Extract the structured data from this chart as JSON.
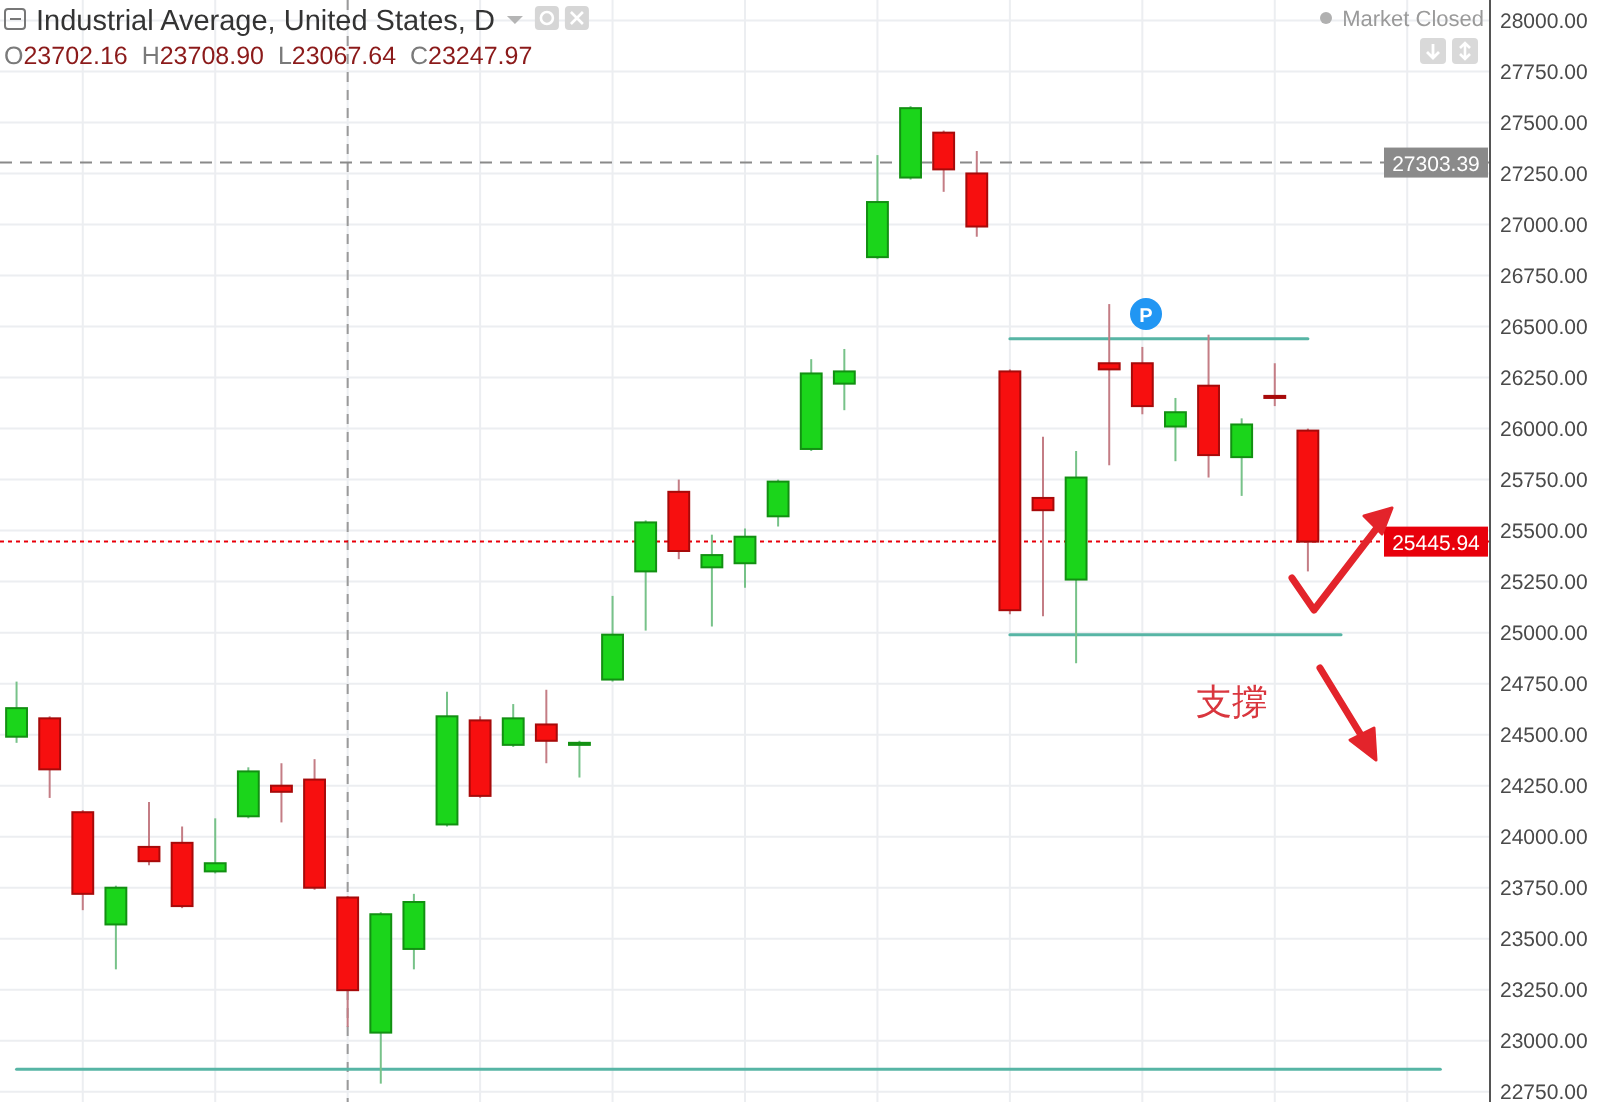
{
  "chart_data": {
    "type": "candlestick",
    "title": "Industrial Average, United States, D",
    "annotations": [
      "O23702.16 H23708.90 L23067.64 C23247.97",
      "Market Closed",
      "P",
      "支撐"
    ],
    "categories": [
      null,
      null,
      null,
      null,
      null,
      null,
      null,
      null,
      null,
      null,
      null,
      null,
      null,
      null,
      null,
      null,
      null,
      null,
      null,
      null,
      null,
      null,
      null,
      null,
      null,
      null,
      null,
      null,
      null,
      null,
      null,
      null,
      null,
      null,
      null,
      null,
      null,
      null,
      null,
      null,
      null,
      null,
      null,
      null,
      null
    ],
    "ohlc": [
      [
        24490,
        24760,
        24460,
        24630
      ],
      [
        24580,
        24590,
        24190,
        24330
      ],
      [
        24120,
        24130,
        23640,
        23720
      ],
      [
        23570,
        23760,
        23350,
        23750
      ],
      [
        23950,
        24170,
        23860,
        23880
      ],
      [
        23970,
        24050,
        23650,
        23660
      ],
      [
        23830,
        24090,
        23820,
        23870
      ],
      [
        24100,
        24340,
        24090,
        24320
      ],
      [
        24250,
        24360,
        24070,
        24220
      ],
      [
        24280,
        24380,
        23740,
        23750
      ],
      [
        23702.16,
        23708.9,
        23067.64,
        23247.97
      ],
      [
        23040,
        23630,
        22790,
        23620
      ],
      [
        23450,
        23720,
        23350,
        23680
      ],
      [
        24060,
        24710,
        24050,
        24590
      ],
      [
        24570,
        24590,
        24190,
        24200
      ],
      [
        24450,
        24650,
        24440,
        24580
      ],
      [
        24550,
        24720,
        24360,
        24470
      ],
      [
        24450,
        24470,
        24290,
        24460
      ],
      [
        24770,
        25180,
        24760,
        24990
      ],
      [
        25300,
        25550,
        25010,
        25540
      ],
      [
        25690,
        25750,
        25360,
        25400
      ],
      [
        25320,
        25480,
        25030,
        25380
      ],
      [
        25340,
        25510,
        25220,
        25470
      ],
      [
        25570,
        25750,
        25520,
        25740
      ],
      [
        25900,
        26340,
        25890,
        26270
      ],
      [
        26220,
        26390,
        26090,
        26280
      ],
      [
        26840,
        27340,
        26830,
        27110
      ],
      [
        27230,
        27580,
        27220,
        27570
      ],
      [
        27450,
        27460,
        27160,
        27270
      ],
      [
        27250,
        27360,
        26940,
        26990
      ],
      [
        26280,
        26290,
        25090,
        25110
      ],
      [
        25660,
        25960,
        25080,
        25600
      ],
      [
        25260,
        25890,
        24850,
        25760
      ],
      [
        26320,
        26610,
        25820,
        26290
      ],
      [
        26320,
        26400,
        26070,
        26110
      ],
      [
        26010,
        26150,
        25840,
        26080
      ],
      [
        26210,
        26460,
        25760,
        25870
      ],
      [
        25860,
        26050,
        25670,
        26020
      ],
      [
        26160,
        26320,
        26110,
        26150
      ],
      [
        25990,
        26000,
        25300,
        25445.94
      ],
      null,
      null,
      null,
      null,
      null
    ],
    "colors": [
      "#1bd51b",
      "#f70f0f",
      "#f70f0f",
      "#1bd51b",
      "#f70f0f",
      "#f70f0f",
      "#1bd51b",
      "#1bd51b",
      "#f70f0f",
      "#f70f0f",
      "#f70f0f",
      "#1bd51b",
      "#1bd51b",
      "#1bd51b",
      "#f70f0f",
      "#1bd51b",
      "#f70f0f",
      "#1bd51b",
      "#1bd51b",
      "#1bd51b",
      "#f70f0f",
      "#1bd51b",
      "#1bd51b",
      "#1bd51b",
      "#1bd51b",
      "#1bd51b",
      "#1bd51b",
      "#1bd51b",
      "#f70f0f",
      "#f70f0f",
      "#f70f0f",
      "#f70f0f",
      "#1bd51b",
      "#f70f0f",
      "#f70f0f",
      "#1bd51b",
      "#f70f0f",
      "#1bd51b",
      "#f70f0f",
      "#f70f0f",
      null,
      null,
      null,
      null,
      null
    ],
    "series": [
      {
        "type": "line",
        "color": "#57b5a5",
        "values": [
          null,
          null,
          null,
          null,
          null,
          null,
          null,
          null,
          null,
          null,
          null,
          null,
          null,
          null,
          null,
          null,
          null,
          null,
          null,
          null,
          null,
          null,
          null,
          null,
          null,
          null,
          null,
          null,
          null,
          null,
          26440,
          26440,
          26440,
          26440,
          26440,
          26440,
          26440,
          26440,
          26440,
          26440,
          null,
          null,
          null,
          null,
          null
        ]
      },
      {
        "type": "line",
        "color": "#57b5a5",
        "values": [
          null,
          null,
          null,
          null,
          null,
          null,
          null,
          null,
          null,
          null,
          null,
          null,
          null,
          null,
          null,
          null,
          null,
          null,
          null,
          null,
          null,
          null,
          null,
          null,
          null,
          null,
          null,
          null,
          null,
          null,
          24990,
          24990,
          24990,
          24990,
          24990,
          24990,
          24990,
          24990,
          24990,
          24990,
          24990,
          null,
          null,
          null,
          null
        ]
      },
      {
        "type": "line",
        "color": "#57b5a5",
        "values": [
          22860,
          22860,
          22860,
          22860,
          22860,
          22860,
          22860,
          22860,
          22860,
          22860,
          22860,
          22860,
          22860,
          22860,
          22860,
          22860,
          22860,
          22860,
          22860,
          22860,
          22860,
          22860,
          22860,
          22860,
          22860,
          22860,
          22860,
          22860,
          22860,
          22860,
          22860,
          22860,
          22860,
          22860,
          22860,
          22860,
          22860,
          22860,
          22860,
          22860,
          22860,
          22860,
          22860,
          22860,
          null
        ]
      }
    ],
    "ylim": [
      22700,
      28100
    ],
    "yticks": [
      {
        "value": 22750,
        "label": "22750.00"
      },
      {
        "value": 23000,
        "label": "23000.00"
      },
      {
        "value": 23250,
        "label": "23250.00"
      },
      {
        "value": 23500,
        "label": "23500.00"
      },
      {
        "value": 23750,
        "label": "23750.00"
      },
      {
        "value": 24000,
        "label": "24000.00"
      },
      {
        "value": 24250,
        "label": "24250.00"
      },
      {
        "value": 24500,
        "label": "24500.00"
      },
      {
        "value": 24750,
        "label": "24750.00"
      },
      {
        "value": 25000,
        "label": "25000.00"
      },
      {
        "value": 25250,
        "label": "25250.00"
      },
      {
        "value": 25500,
        "label": "25500.00"
      },
      {
        "value": 25750,
        "label": "25750.00"
      },
      {
        "value": 26000,
        "label": "26000.00"
      },
      {
        "value": 26250,
        "label": "26250.00"
      },
      {
        "value": 26500,
        "label": "26500.00"
      },
      {
        "value": 26750,
        "label": "26750.00"
      },
      {
        "value": 27000,
        "label": "27000.00"
      },
      {
        "value": 27250,
        "label": "27250.00"
      },
      {
        "value": 27500,
        "label": "27500.00"
      },
      {
        "value": 27750,
        "label": "27750.00"
      },
      {
        "value": 28000,
        "label": "28000.00"
      }
    ],
    "ref_lines": [
      {
        "axis": "y",
        "value": 27303.39,
        "label": "27303.39",
        "color": "#8a8a8a",
        "line_style": "dashed"
      },
      {
        "axis": "y",
        "value": 25445.94,
        "label": "25445.94",
        "color": "#e8000b",
        "line_style": "dotted"
      }
    ],
    "grid": true,
    "tick_labels": "y"
  }
}
